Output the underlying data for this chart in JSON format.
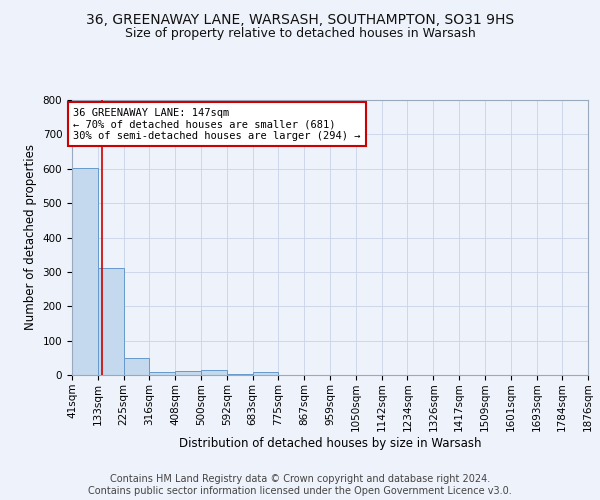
{
  "title": "36, GREENAWAY LANE, WARSASH, SOUTHAMPTON, SO31 9HS",
  "subtitle": "Size of property relative to detached houses in Warsash",
  "xlabel": "Distribution of detached houses by size in Warsash",
  "ylabel": "Number of detached properties",
  "bin_edges": [
    41,
    133,
    225,
    316,
    408,
    500,
    592,
    683,
    775,
    867,
    959,
    1050,
    1142,
    1234,
    1326,
    1417,
    1509,
    1601,
    1693,
    1784,
    1876
  ],
  "bin_labels": [
    "41sqm",
    "133sqm",
    "225sqm",
    "316sqm",
    "408sqm",
    "500sqm",
    "592sqm",
    "683sqm",
    "775sqm",
    "867sqm",
    "959sqm",
    "1050sqm",
    "1142sqm",
    "1234sqm",
    "1326sqm",
    "1417sqm",
    "1509sqm",
    "1601sqm",
    "1693sqm",
    "1784sqm",
    "1876sqm"
  ],
  "bar_heights": [
    601,
    310,
    50,
    10,
    12,
    14,
    4,
    10,
    0,
    0,
    0,
    0,
    0,
    0,
    0,
    0,
    0,
    0,
    0,
    0
  ],
  "bar_color": "#c5d9ee",
  "bar_edge_color": "#6699cc",
  "property_line_x": 147,
  "property_line_color": "#cc0000",
  "annotation_text": "36 GREENAWAY LANE: 147sqm\n← 70% of detached houses are smaller (681)\n30% of semi-detached houses are larger (294) →",
  "annotation_box_edge": "#cc0000",
  "annotation_box_face": "#ffffff",
  "ylim": [
    0,
    800
  ],
  "yticks": [
    0,
    100,
    200,
    300,
    400,
    500,
    600,
    700,
    800
  ],
  "footer_line1": "Contains HM Land Registry data © Crown copyright and database right 2024.",
  "footer_line2": "Contains public sector information licensed under the Open Government Licence v3.0.",
  "bg_color": "#eef2fa",
  "plot_bg_color": "#eef2fa",
  "grid_color": "#c8d4e8",
  "title_fontsize": 10,
  "subtitle_fontsize": 9,
  "axis_label_fontsize": 8.5,
  "tick_fontsize": 7.5,
  "footer_fontsize": 7
}
